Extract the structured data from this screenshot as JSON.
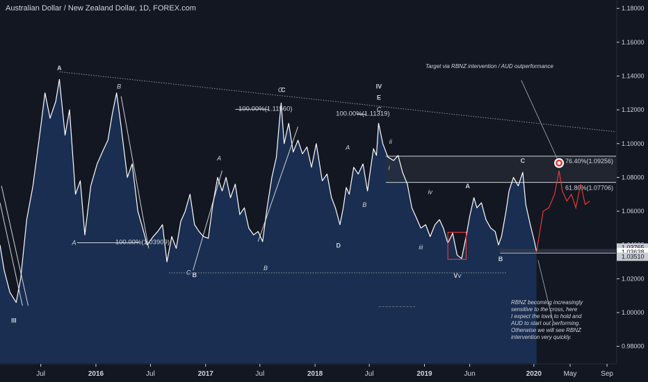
{
  "header": {
    "title": "Australian Dollar / New Zealand Dollar, 1D, FOREX.com"
  },
  "notes": {
    "target": "Target via RBNZ intervention / AUD outperformance",
    "rbnz": [
      "RBNZ becoming increasingly",
      "sensitive to the cross, here",
      "I expect the lows to hold and",
      "AUD to start out performing.",
      "Otherwise we will see RBNZ",
      "intervention very quickly."
    ]
  },
  "colors": {
    "background": "#131722",
    "area_fill": "#1b3358",
    "price_line": "#ffffff",
    "projection": "#e53935",
    "box": "#e53935",
    "band": "#2a2e39"
  },
  "chart_data": {
    "type": "area",
    "title": "Australian Dollar / New Zealand Dollar, 1D, FOREX.com",
    "ylim": [
      0.97,
      1.185
    ],
    "xlim": [
      "2015-02-15",
      "2020-10-01"
    ],
    "y_ticks": [
      "1.18000",
      "1.16000",
      "1.14000",
      "1.12000",
      "1.10000",
      "1.08000",
      "1.06000",
      "1.04000",
      "1.02000",
      "1.00000",
      "0.98000"
    ],
    "y_tick_values": [
      1.18,
      1.16,
      1.14,
      1.12,
      1.1,
      1.08,
      1.06,
      1.04,
      1.02,
      1.0,
      0.98
    ],
    "x_ticks": [
      {
        "label": "Jul",
        "x": "2015-07-01"
      },
      {
        "label": "2016",
        "x": "2016-01-01"
      },
      {
        "label": "Jul",
        "x": "2016-07-01"
      },
      {
        "label": "2017",
        "x": "2017-01-01"
      },
      {
        "label": "Jul",
        "x": "2017-07-01"
      },
      {
        "label": "2018",
        "x": "2018-01-01"
      },
      {
        "label": "Jul",
        "x": "2018-07-01"
      },
      {
        "label": "2019",
        "x": "2019-01-01"
      },
      {
        "label": "Jun",
        "x": "2019-06-01"
      },
      {
        "label": "2020",
        "x": "2020-01-01"
      },
      {
        "label": "May",
        "x": "2020-05-01"
      },
      {
        "label": "Sep",
        "x": "2020-09-01"
      }
    ],
    "price_badges": [
      {
        "label": "1.03765",
        "value": 1.03765,
        "style": "light"
      },
      {
        "label": "1.03638",
        "value": 1.03638,
        "style": "white"
      },
      {
        "label": "1.03510",
        "value": 1.0351,
        "style": "light"
      }
    ],
    "price_series": {
      "name": "AUDNZD",
      "points": [
        [
          "2015-02-15",
          1.04
        ],
        [
          "2015-03-01",
          1.025
        ],
        [
          "2015-03-20",
          1.012
        ],
        [
          "2015-04-10",
          1.006
        ],
        [
          "2015-04-25",
          1.02
        ],
        [
          "2015-05-15",
          1.055
        ],
        [
          "2015-06-05",
          1.075
        ],
        [
          "2015-07-01",
          1.11
        ],
        [
          "2015-07-15",
          1.13
        ],
        [
          "2015-08-01",
          1.115
        ],
        [
          "2015-08-20",
          1.125
        ],
        [
          "2015-09-01",
          1.138
        ],
        [
          "2015-09-20",
          1.105
        ],
        [
          "2015-10-05",
          1.12
        ],
        [
          "2015-10-25",
          1.07
        ],
        [
          "2015-11-10",
          1.078
        ],
        [
          "2015-11-25",
          1.046
        ],
        [
          "2015-12-15",
          1.075
        ],
        [
          "2016-01-05",
          1.088
        ],
        [
          "2016-01-25",
          1.096
        ],
        [
          "2016-02-10",
          1.102
        ],
        [
          "2016-02-25",
          1.118
        ],
        [
          "2016-03-10",
          1.13
        ],
        [
          "2016-03-25",
          1.11
        ],
        [
          "2016-04-15",
          1.08
        ],
        [
          "2016-05-01",
          1.088
        ],
        [
          "2016-05-20",
          1.06
        ],
        [
          "2016-06-05",
          1.05
        ],
        [
          "2016-06-20",
          1.04
        ],
        [
          "2016-07-10",
          1.045
        ],
        [
          "2016-07-25",
          1.048
        ],
        [
          "2016-08-10",
          1.052
        ],
        [
          "2016-08-25",
          1.03
        ],
        [
          "2016-09-10",
          1.045
        ],
        [
          "2016-09-25",
          1.038
        ],
        [
          "2016-10-10",
          1.054
        ],
        [
          "2016-10-25",
          1.06
        ],
        [
          "2016-11-10",
          1.07
        ],
        [
          "2016-11-25",
          1.052
        ],
        [
          "2016-12-10",
          1.048
        ],
        [
          "2016-12-25",
          1.045
        ],
        [
          "2017-01-10",
          1.044
        ],
        [
          "2017-01-25",
          1.064
        ],
        [
          "2017-02-10",
          1.08
        ],
        [
          "2017-02-25",
          1.072
        ],
        [
          "2017-03-10",
          1.08
        ],
        [
          "2017-03-25",
          1.068
        ],
        [
          "2017-04-10",
          1.076
        ],
        [
          "2017-04-25",
          1.058
        ],
        [
          "2017-05-10",
          1.062
        ],
        [
          "2017-05-25",
          1.05
        ],
        [
          "2017-06-10",
          1.046
        ],
        [
          "2017-06-25",
          1.048
        ],
        [
          "2017-07-10",
          1.042
        ],
        [
          "2017-07-25",
          1.062
        ],
        [
          "2017-08-10",
          1.08
        ],
        [
          "2017-08-25",
          1.092
        ],
        [
          "2017-09-05",
          1.115
        ],
        [
          "2017-09-10",
          1.124
        ],
        [
          "2017-09-20",
          1.1
        ],
        [
          "2017-10-05",
          1.112
        ],
        [
          "2017-10-20",
          1.095
        ],
        [
          "2017-11-05",
          1.102
        ],
        [
          "2017-11-20",
          1.094
        ],
        [
          "2017-12-05",
          1.098
        ],
        [
          "2017-12-20",
          1.086
        ],
        [
          "2018-01-05",
          1.1
        ],
        [
          "2018-01-25",
          1.078
        ],
        [
          "2018-02-10",
          1.082
        ],
        [
          "2018-02-25",
          1.068
        ],
        [
          "2018-03-10",
          1.062
        ],
        [
          "2018-03-25",
          1.052
        ],
        [
          "2018-04-05",
          1.062
        ],
        [
          "2018-04-15",
          1.074
        ],
        [
          "2018-04-25",
          1.07
        ],
        [
          "2018-05-10",
          1.086
        ],
        [
          "2018-05-25",
          1.082
        ],
        [
          "2018-06-10",
          1.088
        ],
        [
          "2018-06-25",
          1.072
        ],
        [
          "2018-07-05",
          1.085
        ],
        [
          "2018-07-15",
          1.097
        ],
        [
          "2018-07-25",
          1.093
        ],
        [
          "2018-08-01",
          1.112
        ],
        [
          "2018-08-15",
          1.1
        ],
        [
          "2018-09-01",
          1.092
        ],
        [
          "2018-09-20",
          1.09
        ],
        [
          "2018-10-05",
          1.093
        ],
        [
          "2018-10-20",
          1.083
        ],
        [
          "2018-11-05",
          1.076
        ],
        [
          "2018-11-20",
          1.062
        ],
        [
          "2018-12-05",
          1.056
        ],
        [
          "2018-12-20",
          1.05
        ],
        [
          "2019-01-05",
          1.052
        ],
        [
          "2019-01-20",
          1.045
        ],
        [
          "2019-02-05",
          1.052
        ],
        [
          "2019-02-20",
          1.055
        ],
        [
          "2019-03-05",
          1.05
        ],
        [
          "2019-03-20",
          1.041
        ],
        [
          "2019-04-05",
          1.047
        ],
        [
          "2019-04-20",
          1.034
        ],
        [
          "2019-05-05",
          1.032
        ],
        [
          "2019-05-20",
          1.045
        ],
        [
          "2019-06-01",
          1.057
        ],
        [
          "2019-06-15",
          1.068
        ],
        [
          "2019-06-25",
          1.062
        ],
        [
          "2019-07-10",
          1.065
        ],
        [
          "2019-07-25",
          1.055
        ],
        [
          "2019-08-10",
          1.05
        ],
        [
          "2019-08-25",
          1.048
        ],
        [
          "2019-09-05",
          1.04
        ],
        [
          "2019-09-15",
          1.045
        ],
        [
          "2019-09-30",
          1.06
        ],
        [
          "2019-10-10",
          1.072
        ],
        [
          "2019-10-25",
          1.08
        ],
        [
          "2019-11-10",
          1.075
        ],
        [
          "2019-11-25",
          1.083
        ],
        [
          "2019-12-05",
          1.064
        ],
        [
          "2019-12-20",
          1.052
        ],
        [
          "2020-01-03",
          1.042
        ],
        [
          "2020-01-10",
          1.036
        ]
      ]
    },
    "projection_series": {
      "points": [
        [
          "2020-01-10",
          1.036
        ],
        [
          "2020-02-01",
          1.06
        ],
        [
          "2020-02-20",
          1.062
        ],
        [
          "2020-03-10",
          1.07
        ],
        [
          "2020-03-25",
          1.084
        ],
        [
          "2020-04-05",
          1.072
        ],
        [
          "2020-04-20",
          1.066
        ],
        [
          "2020-05-05",
          1.07
        ],
        [
          "2020-05-20",
          1.062
        ],
        [
          "2020-06-05",
          1.076
        ],
        [
          "2020-06-20",
          1.064
        ],
        [
          "2020-07-05",
          1.066
        ]
      ]
    },
    "fib_levels": [
      {
        "label": "76.40%(1.09256)",
        "value": 1.09256
      },
      {
        "label": "61.80%(1.07706)",
        "value": 1.07706
      }
    ],
    "trendlines": [
      {
        "from": [
          "2015-09-01",
          1.1425
        ],
        "to": [
          "2020-10-01",
          1.107
        ],
        "style": "dotted"
      },
      {
        "from": [
          "2016-09-01",
          1.0235
        ],
        "to": [
          "2019-09-30",
          1.0235
        ],
        "style": "dotted"
      }
    ],
    "wave_labels": [
      {
        "text": "A",
        "x": "2015-09-01",
        "y": 1.1435,
        "bold": true
      },
      {
        "text": "B",
        "x": "2016-03-18",
        "y": 1.1325,
        "italic": true
      },
      {
        "text": "A",
        "x": "2015-10-20",
        "y": 1.04,
        "italic": true
      },
      {
        "text": "C",
        "x": "2016-11-05",
        "y": 1.0225,
        "italic": true
      },
      {
        "text": "B",
        "x": "2016-11-25",
        "y": 1.021,
        "bold": true
      },
      {
        "text": "III",
        "x": "2015-04-02",
        "y": 0.994,
        "bold": true
      },
      {
        "text": "A",
        "x": "2017-02-15",
        "y": 1.09,
        "italic": true
      },
      {
        "text": "B",
        "x": "2017-07-20",
        "y": 1.025,
        "italic": true
      },
      {
        "text": "C",
        "x": "2017-09-07",
        "y": 1.1305,
        "italic": true
      },
      {
        "text": "C",
        "x": "2017-09-17",
        "y": 1.1305,
        "bold": true
      },
      {
        "text": "D",
        "x": "2018-03-20",
        "y": 1.0385,
        "bold": true
      },
      {
        "text": "A",
        "x": "2018-04-20",
        "y": 1.0965,
        "italic": true
      },
      {
        "text": "B",
        "x": "2018-06-15",
        "y": 1.0625,
        "italic": true
      },
      {
        "text": "IV",
        "x": "2018-08-02",
        "y": 1.1325,
        "bold": true
      },
      {
        "text": "E",
        "x": "2018-08-02",
        "y": 1.126,
        "bold": true
      },
      {
        "text": "C",
        "x": "2018-08-02",
        "y": 1.119,
        "italic": true
      },
      {
        "text": "ii",
        "x": "2018-09-10",
        "y": 1.1,
        "italic": true
      },
      {
        "text": "i",
        "x": "2018-09-05",
        "y": 1.0845,
        "italic": true
      },
      {
        "text": "iii",
        "x": "2018-12-20",
        "y": 1.0375,
        "italic": true
      },
      {
        "text": "iv",
        "x": "2019-01-20",
        "y": 1.07,
        "italic": true
      },
      {
        "text": "A",
        "x": "2019-05-25",
        "y": 1.0735,
        "bold": true
      },
      {
        "text": "B",
        "x": "2019-09-12",
        "y": 1.0305,
        "bold": true
      },
      {
        "text": "V",
        "x": "2019-04-15",
        "y": 1.0205,
        "bold": true
      },
      {
        "text": "v",
        "x": "2019-04-28",
        "y": 1.0205,
        "italic": true
      },
      {
        "text": "C",
        "x": "2019-11-25",
        "y": 1.0885,
        "bold": true
      }
    ],
    "measure_labels": [
      {
        "text": "100.00%(1.03909)",
        "x": "2016-06-25",
        "y": 1.0405,
        "line_from": "2015-10-30",
        "line_to": "2016-05-25"
      },
      {
        "text": "100.00%(1.11560)",
        "x": "2017-08-10",
        "y": 1.1195,
        "line_from": "2017-04-10",
        "line_to": "2017-07-30"
      },
      {
        "text": "100.00%(1.11319)",
        "x": "2018-07-01",
        "y": 1.1165,
        "line_from": "2018-05-20",
        "line_to": "2018-06-20"
      }
    ],
    "grid": false
  }
}
